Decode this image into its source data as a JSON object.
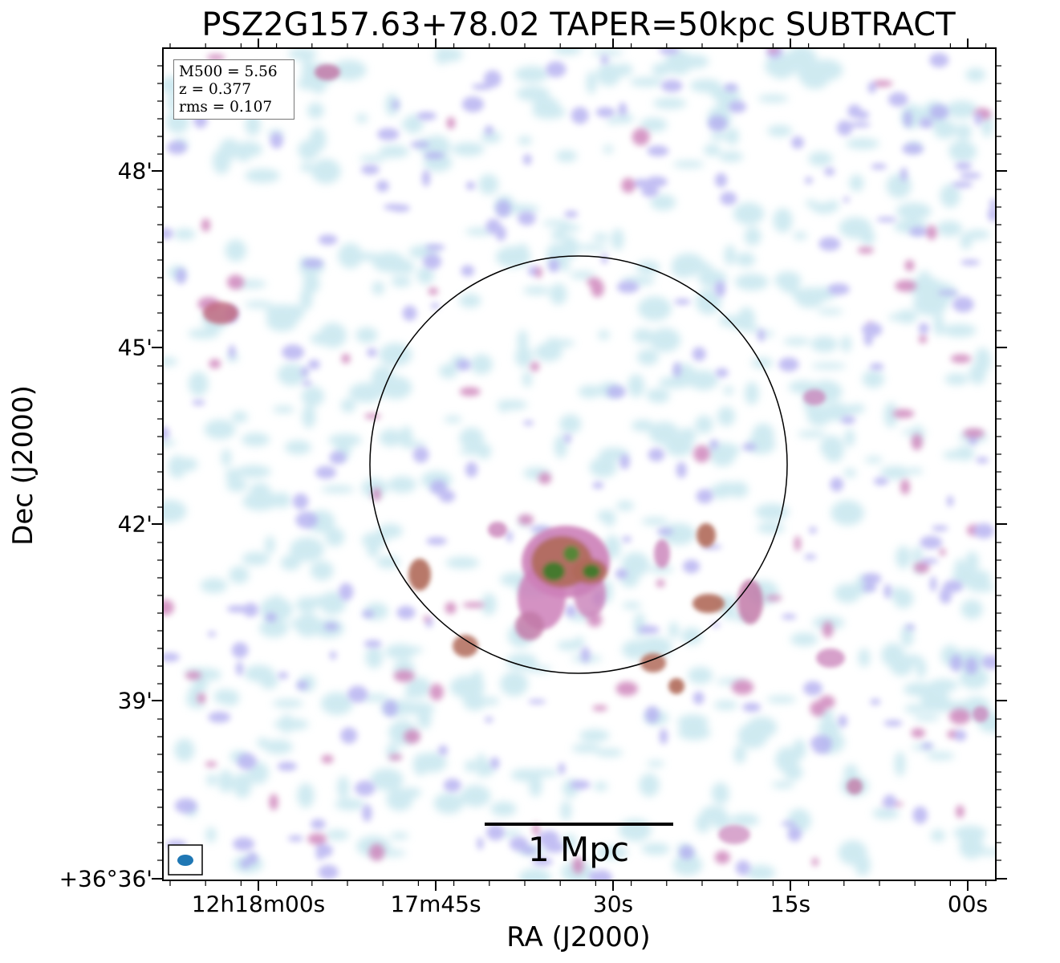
{
  "title": "PSZ2G157.63+78.02 TAPER=50kpc SUBTRACT",
  "info": {
    "line1": "M500 = 5.56",
    "line2": "z = 0.377",
    "line3": "rms = 0.107"
  },
  "axes": {
    "xlabel": "RA (J2000)",
    "ylabel": "Dec (J2000)",
    "xticks": [
      "12h18m00s",
      "17m45s",
      "30s",
      "15s",
      "00s"
    ],
    "yticks": [
      "48'",
      "45'",
      "42'",
      "39'",
      "+36°36'"
    ]
  },
  "scalebar": {
    "label": "1 Mpc"
  },
  "colors": {
    "noise_light": "#bfe3ec",
    "noise_purple": "#b3aef0",
    "emission_pink": "#cc7fb8",
    "emission_brown": "#b06a5a",
    "emission_green": "#3f7a2a",
    "beam": "#1f77b4"
  }
}
